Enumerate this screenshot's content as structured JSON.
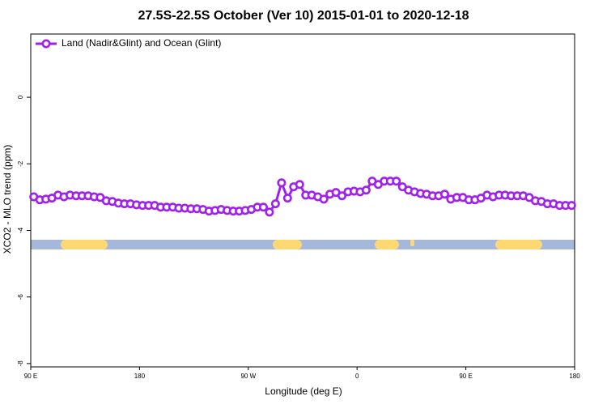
{
  "chart_data": {
    "type": "line",
    "title": "27.5S-22.5S October (Ver 10)   2015-01-01 to 2020-12-18",
    "x_label": "Longitude (deg E)",
    "y_label": "XCO2 - MLO trend (ppm)",
    "x": [
      92.5,
      97.5,
      102.5,
      107.5,
      112.5,
      117.5,
      122.5,
      127.5,
      132.5,
      137.5,
      142.5,
      147.5,
      152.5,
      157.5,
      162.5,
      167.5,
      172.5,
      177.5,
      182.5,
      187.5,
      192.5,
      197.5,
      202.5,
      207.5,
      212.5,
      217.5,
      222.5,
      227.5,
      232.5,
      237.5,
      242.5,
      247.5,
      252.5,
      257.5,
      262.5,
      267.5,
      272.5,
      277.5,
      282.5,
      287.5,
      292.5,
      297.5,
      302.5,
      307.5,
      312.5,
      317.5,
      322.5,
      327.5,
      332.5,
      337.5,
      342.5,
      347.5,
      352.5,
      357.5,
      362.5,
      367.5,
      372.5,
      377.5,
      382.5,
      387.5,
      392.5,
      397.5,
      402.5,
      407.5,
      412.5,
      417.5,
      422.5,
      427.5,
      432.5,
      437.5,
      442.5,
      447.5,
      452.5,
      457.5,
      462.5,
      467.5,
      472.5,
      477.5,
      482.5,
      487.5,
      492.5,
      497.5,
      502.5,
      507.5,
      512.5,
      517.5,
      522.5,
      527.5,
      532.5,
      537.5
    ],
    "series": [
      {
        "name": "Land (Nadir&Glint) and Ocean (Glint)",
        "color": "#a020f0",
        "values": [
          -2.99,
          -3.08,
          -3.06,
          -3.03,
          -2.94,
          -2.99,
          -2.94,
          -2.96,
          -2.96,
          -2.96,
          -2.99,
          -3.01,
          -3.11,
          -3.13,
          -3.18,
          -3.2,
          -3.2,
          -3.23,
          -3.25,
          -3.25,
          -3.25,
          -3.3,
          -3.3,
          -3.3,
          -3.33,
          -3.33,
          -3.35,
          -3.35,
          -3.37,
          -3.42,
          -3.4,
          -3.37,
          -3.4,
          -3.42,
          -3.42,
          -3.4,
          -3.37,
          -3.3,
          -3.3,
          -3.45,
          -3.2,
          -2.57,
          -3.03,
          -2.69,
          -2.62,
          -2.94,
          -2.94,
          -2.99,
          -3.06,
          -2.91,
          -2.86,
          -2.96,
          -2.84,
          -2.82,
          -2.84,
          -2.79,
          -2.52,
          -2.62,
          -2.52,
          -2.52,
          -2.52,
          -2.69,
          -2.79,
          -2.84,
          -2.89,
          -2.91,
          -2.96,
          -2.96,
          -2.91,
          -3.06,
          -3.01,
          -3.01,
          -3.08,
          -3.08,
          -3.03,
          -2.94,
          -2.99,
          -2.94,
          -2.94,
          -2.96,
          -2.96,
          -2.96,
          -3.01,
          -3.11,
          -3.13,
          -3.2,
          -3.2,
          -3.25,
          -3.25,
          -3.25
        ]
      }
    ],
    "xlim": [
      90,
      540
    ],
    "xticks": [
      {
        "value": 90,
        "label": "90 E"
      },
      180,
      {
        "value": 270,
        "label": "90 W"
      },
      {
        "value": 360,
        "label": "0"
      },
      {
        "value": 450,
        "label": "90 E"
      },
      {
        "value": 540,
        "label": "180"
      }
    ],
    "ylim": [
      -8.1,
      1.9
    ],
    "yticks": [
      0,
      -2,
      -4,
      -6,
      -8
    ],
    "legend": "upper-left"
  }
}
